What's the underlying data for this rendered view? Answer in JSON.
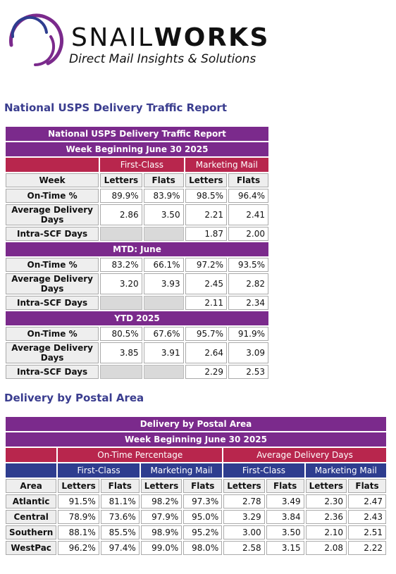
{
  "logo": {
    "brand_thin": "SNAIL",
    "brand_bold": "WORKS",
    "tagline": "Direct Mail Insights & Solutions",
    "colors": {
      "purple": "#7b2a8c",
      "blue": "#2e3d8f"
    }
  },
  "national": {
    "section_heading": "National USPS Delivery Traffic Report",
    "title": "National USPS Delivery Traffic Report",
    "week": "Week Beginning June 30 2025",
    "groups": [
      "First-Class",
      "Marketing Mail"
    ],
    "week_label": "Week",
    "columns": [
      "Letters",
      "Flats",
      "Letters",
      "Flats"
    ],
    "week_rows": [
      {
        "label": "On-Time %",
        "values": [
          "89.9%",
          "83.9%",
          "98.5%",
          "96.4%"
        ]
      },
      {
        "label": "Average Delivery Days",
        "values": [
          "2.86",
          "3.50",
          "2.21",
          "2.41"
        ]
      },
      {
        "label": "Intra-SCF Days",
        "values": [
          "",
          "",
          "1.87",
          "2.00"
        ]
      }
    ],
    "mtd_title": "MTD: June",
    "mtd_rows": [
      {
        "label": "On-Time %",
        "values": [
          "83.2%",
          "66.1%",
          "97.2%",
          "93.5%"
        ]
      },
      {
        "label": "Average Delivery Days",
        "values": [
          "3.20",
          "3.93",
          "2.45",
          "2.82"
        ]
      },
      {
        "label": "Intra-SCF Days",
        "values": [
          "",
          "",
          "2.11",
          "2.34"
        ]
      }
    ],
    "ytd_title": "YTD 2025",
    "ytd_rows": [
      {
        "label": "On-Time %",
        "values": [
          "80.5%",
          "67.6%",
          "95.7%",
          "91.9%"
        ]
      },
      {
        "label": "Average Delivery Days",
        "values": [
          "3.85",
          "3.91",
          "2.64",
          "3.09"
        ]
      },
      {
        "label": "Intra-SCF Days",
        "values": [
          "",
          "",
          "2.29",
          "2.53"
        ]
      }
    ]
  },
  "postal": {
    "section_heading": "Delivery by Postal Area",
    "title": "Delivery by Postal Area",
    "week": "Week Beginning June 30 2025",
    "metric_groups": [
      "On-Time Percentage",
      "Average Delivery Days"
    ],
    "mail_groups": [
      "First-Class",
      "Marketing Mail",
      "First-Class",
      "Marketing Mail"
    ],
    "area_label": "Area",
    "columns": [
      "Letters",
      "Flats",
      "Letters",
      "Flats",
      "Letters",
      "Flats",
      "Letters",
      "Flats"
    ],
    "rows": [
      {
        "area": "Atlantic",
        "values": [
          "91.5%",
          "81.1%",
          "98.2%",
          "97.3%",
          "2.78",
          "3.49",
          "2.30",
          "2.47"
        ]
      },
      {
        "area": "Central",
        "values": [
          "78.9%",
          "73.6%",
          "97.9%",
          "95.0%",
          "3.29",
          "3.84",
          "2.36",
          "2.43"
        ]
      },
      {
        "area": "Southern",
        "values": [
          "88.1%",
          "85.5%",
          "98.9%",
          "95.2%",
          "3.00",
          "3.50",
          "2.10",
          "2.51"
        ]
      },
      {
        "area": "WestPac",
        "values": [
          "96.2%",
          "97.4%",
          "99.0%",
          "98.0%",
          "2.58",
          "3.15",
          "2.08",
          "2.22"
        ]
      }
    ]
  }
}
